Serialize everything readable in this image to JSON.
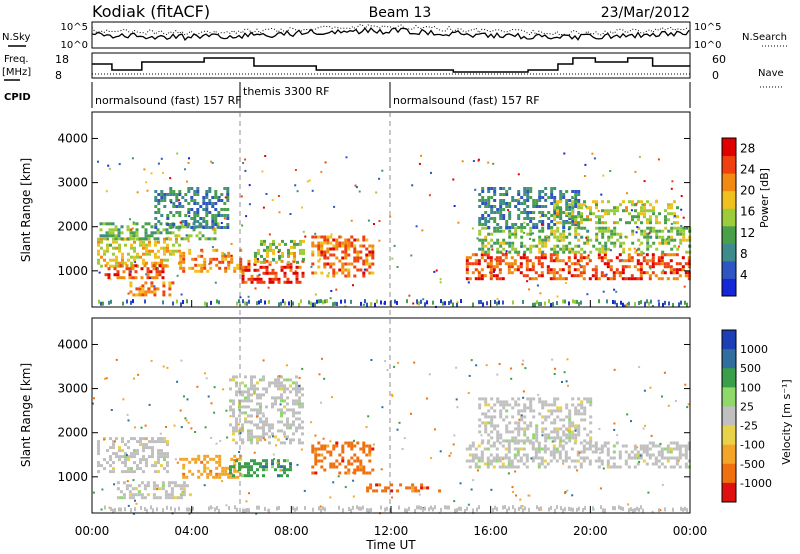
{
  "header": {
    "station": "Kodiak (fitACF)",
    "beam": "Beam 13",
    "date": "23/Mar/2012"
  },
  "noise_panel": {
    "left_label": "N.Sky",
    "right_label": "N.Search",
    "tick_top": "10^5",
    "tick_bottom": "10^0",
    "right_tick_top": "10^5",
    "right_tick_bottom": "10^0"
  },
  "freq_panel": {
    "left_label_1": "Freq.",
    "left_label_2": "[MHz]",
    "tick_top": "18",
    "tick_bottom": "8",
    "right_tick_top": "60",
    "right_tick_bottom": "0",
    "right_label": "Nave"
  },
  "cpid_panel": {
    "label": "CPID",
    "segments": [
      {
        "text": "normalsound (fast) 157 RF",
        "start": 0,
        "end": 6
      },
      {
        "text": "themis 3300 RF",
        "start": 6,
        "end": 12
      },
      {
        "text": "normalsound (fast) 157 RF",
        "start": 12,
        "end": 24
      }
    ]
  },
  "chart_data": [
    {
      "type": "heatmap",
      "title": "Power",
      "ylabel": "Slant Range [km]",
      "xlabel": "Time UT",
      "x_ticks": [
        "00:00",
        "04:00",
        "08:00",
        "12:00",
        "16:00",
        "20:00",
        "00:00"
      ],
      "x_range_hours": [
        0,
        24
      ],
      "y_ticks": [
        1000,
        2000,
        3000,
        4000
      ],
      "y_range_km": [
        180,
        4600
      ],
      "colorbar": {
        "label": "Power [dB]",
        "ticks": [
          4,
          8,
          12,
          16,
          20,
          24,
          28
        ],
        "range": [
          0,
          30
        ]
      },
      "regions": [
        {
          "t": [
            0.2,
            3.5
          ],
          "r": [
            1100,
            1750
          ],
          "level": 18
        },
        {
          "t": [
            0.5,
            3.0
          ],
          "r": [
            850,
            1150
          ],
          "level": 26
        },
        {
          "t": [
            1.5,
            3.2
          ],
          "r": [
            480,
            760
          ],
          "level": 22
        },
        {
          "t": [
            3.5,
            6.0
          ],
          "r": [
            1000,
            1500
          ],
          "level": 22
        },
        {
          "t": [
            6.0,
            8.5
          ],
          "r": [
            750,
            1250
          ],
          "level": 27
        },
        {
          "t": [
            6.5,
            8.5
          ],
          "r": [
            1200,
            1700
          ],
          "level": 16
        },
        {
          "t": [
            0.3,
            5.0
          ],
          "r": [
            1700,
            2100
          ],
          "level": 12
        },
        {
          "t": [
            2.5,
            5.5
          ],
          "r": [
            2000,
            2900
          ],
          "level": 8
        },
        {
          "t": [
            8.8,
            11.3
          ],
          "r": [
            900,
            1800
          ],
          "level": 24
        },
        {
          "t": [
            15.0,
            24.0
          ],
          "r": [
            850,
            1400
          ],
          "level": 26
        },
        {
          "t": [
            15.5,
            24.0
          ],
          "r": [
            1400,
            2000
          ],
          "level": 14
        },
        {
          "t": [
            15.5,
            19.5
          ],
          "r": [
            2000,
            2900
          ],
          "level": 8
        },
        {
          "t": [
            18.5,
            23.5
          ],
          "r": [
            2100,
            2600
          ],
          "level": 16
        }
      ]
    },
    {
      "type": "heatmap",
      "title": "Velocity",
      "ylabel": "Slant Range [km]",
      "xlabel": "Time UT",
      "x_ticks": [
        "00:00",
        "04:00",
        "08:00",
        "12:00",
        "16:00",
        "20:00",
        "00:00"
      ],
      "x_range_hours": [
        0,
        24
      ],
      "y_ticks": [
        1000,
        2000,
        3000,
        4000
      ],
      "y_range_km": [
        180,
        4600
      ],
      "colorbar": {
        "label": "Velocity [m s⁻¹]",
        "ticks": [
          "1000",
          "500",
          "100",
          "25",
          "-25",
          "-100",
          "-500",
          "-1000"
        ]
      },
      "regions": [
        {
          "t": [
            0.2,
            3.0
          ],
          "r": [
            1100,
            1900
          ],
          "level": "ground"
        },
        {
          "t": [
            1.0,
            4.0
          ],
          "r": [
            550,
            900
          ],
          "level": "ground"
        },
        {
          "t": [
            3.5,
            6.0
          ],
          "r": [
            1000,
            1500
          ],
          "level": "-100"
        },
        {
          "t": [
            5.5,
            8.0
          ],
          "r": [
            1000,
            1400
          ],
          "level": "100"
        },
        {
          "t": [
            8.8,
            11.3
          ],
          "r": [
            1100,
            1800
          ],
          "level": "-500"
        },
        {
          "t": [
            11.0,
            14.0
          ],
          "r": [
            700,
            850
          ],
          "level": "-500"
        },
        {
          "t": [
            15.0,
            24.0
          ],
          "r": [
            1200,
            1800
          ],
          "level": "ground"
        },
        {
          "t": [
            15.5,
            20.0
          ],
          "r": [
            1800,
            2800
          ],
          "level": "ground"
        },
        {
          "t": [
            5.5,
            8.5
          ],
          "r": [
            1800,
            3300
          ],
          "level": "ground"
        }
      ]
    }
  ]
}
